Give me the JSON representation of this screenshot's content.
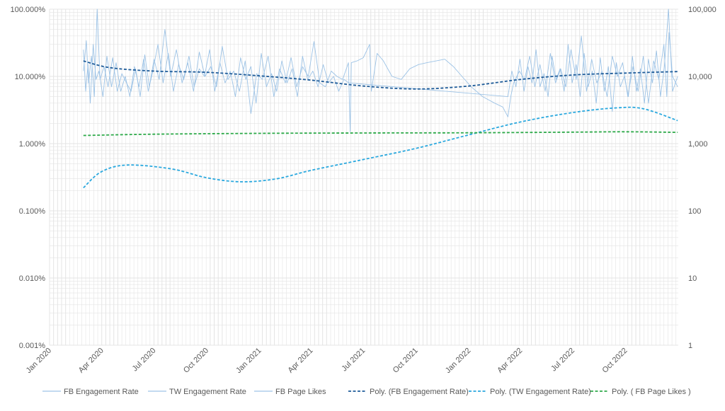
{
  "chart_data": {
    "type": "line",
    "title": "",
    "x_axis": {
      "type": "date",
      "ticks": [
        "Jan 2020",
        "Apr 2020",
        "Jul 2020",
        "Oct 2020",
        "Jan 2021",
        "Apr 2021",
        "Jul 2021",
        "Oct 2021",
        "Jan 2022",
        "Apr 2022",
        "Jul 2022",
        "Oct 2022"
      ],
      "tick_dates": [
        "2020-01-01",
        "2020-04-01",
        "2020-07-01",
        "2020-10-01",
        "2021-01-01",
        "2021-04-01",
        "2021-07-01",
        "2021-10-01",
        "2022-01-01",
        "2022-04-01",
        "2022-07-01",
        "2022-10-01"
      ],
      "range": [
        "2020-01-01",
        "2023-01-01"
      ],
      "label_rotation": "-45deg"
    },
    "y_left": {
      "scale": "log",
      "range": [
        1e-05,
        1
      ],
      "ticks": [
        "0.001%",
        "0.010%",
        "0.100%",
        "1.000%",
        "10.000%",
        "100.000%"
      ]
    },
    "y_right": {
      "scale": "log",
      "range": [
        1,
        100000
      ],
      "ticks": [
        "1",
        "10",
        "100",
        "1,000",
        "10,000",
        "100,000"
      ]
    },
    "grid": true,
    "legend_position": "bottom",
    "legend": [
      "FB Engagement Rate",
      "TW Engagement Rate",
      "FB Page Likes",
      "Poly. (FB Engagement Rate)",
      "Poly. (TW Engagement Rate)",
      "Poly. ( FB Page Likes )"
    ],
    "colors": {
      "raw": "#9DC3E6",
      "poly_fb": "#1F5C99",
      "poly_tw": "#2AA8DE",
      "poly_likes": "#2EAA4A",
      "grid": "#E4E4E4",
      "text": "#595959"
    },
    "series": [
      {
        "name": "Poly. (FB Engagement Rate)",
        "axis": "left",
        "style": "dashed",
        "x": [
          "2020-02-29",
          "2020-04-15",
          "2020-07-01",
          "2020-10-01",
          "2021-01-01",
          "2021-04-01",
          "2021-07-01",
          "2021-10-01",
          "2022-01-01",
          "2022-04-01",
          "2022-07-01",
          "2022-10-01",
          "2022-12-31"
        ],
        "values": [
          0.17,
          0.135,
          0.12,
          0.115,
          0.102,
          0.088,
          0.072,
          0.065,
          0.072,
          0.09,
          0.105,
          0.112,
          0.118
        ]
      },
      {
        "name": "Poly. (TW Engagement Rate)",
        "axis": "left",
        "style": "dashed",
        "x": [
          "2020-02-29",
          "2020-03-31",
          "2020-05-15",
          "2020-08-01",
          "2020-10-01",
          "2020-12-01",
          "2021-01-31",
          "2021-04-01",
          "2021-07-01",
          "2021-10-01",
          "2022-01-01",
          "2022-04-01",
          "2022-07-01",
          "2022-09-15",
          "2022-11-01",
          "2022-12-31"
        ],
        "values": [
          0.0022,
          0.0038,
          0.0048,
          0.0042,
          0.0031,
          0.0027,
          0.003,
          0.004,
          0.0058,
          0.0085,
          0.0135,
          0.021,
          0.029,
          0.034,
          0.033,
          0.022
        ]
      },
      {
        "name": "Poly. ( FB Page Likes )",
        "axis": "right",
        "style": "dashed",
        "x": [
          "2020-02-29",
          "2020-07-01",
          "2021-01-01",
          "2021-07-01",
          "2022-01-01",
          "2022-07-01",
          "2022-10-01",
          "2022-12-31"
        ],
        "values": [
          1320,
          1380,
          1420,
          1440,
          1450,
          1480,
          1500,
          1470
        ]
      },
      {
        "name": "FB Engagement Rate",
        "axis": "left",
        "style": "solid",
        "x": [
          "2020-02-29",
          "2020-03-05",
          "2020-03-09",
          "2020-03-14",
          "2020-03-19",
          "2020-03-24",
          "2020-03-29",
          "2020-04-05",
          "2020-04-12",
          "2020-04-20",
          "2020-04-28",
          "2020-05-06",
          "2020-05-14",
          "2020-05-22",
          "2020-05-30",
          "2020-06-07",
          "2020-06-15",
          "2020-06-23",
          "2020-07-01",
          "2020-07-10",
          "2020-07-20",
          "2020-07-30",
          "2020-08-09",
          "2020-08-19",
          "2020-08-29",
          "2020-09-08",
          "2020-09-18",
          "2020-09-28",
          "2020-10-08",
          "2020-10-18",
          "2020-10-28",
          "2020-11-07",
          "2020-11-17",
          "2020-11-27",
          "2020-12-07",
          "2020-12-17",
          "2020-12-27",
          "2021-01-06",
          "2021-01-16",
          "2021-01-26",
          "2021-02-05",
          "2021-02-15",
          "2021-02-25",
          "2021-03-07",
          "2021-03-17",
          "2021-03-27",
          "2021-04-06",
          "2021-04-16",
          "2021-04-26",
          "2021-05-06",
          "2021-05-16",
          "2021-05-26",
          "2021-06-05",
          "2021-06-08",
          "2021-06-10",
          "2021-06-20",
          "2021-07-01",
          "2021-07-12",
          "2021-07-15",
          "2021-07-25",
          "2021-08-05",
          "2021-08-20",
          "2021-09-05",
          "2021-09-20",
          "2021-10-05",
          "2021-10-20",
          "2021-11-05",
          "2021-11-20",
          "2021-12-05",
          "2021-12-20",
          "2022-01-05",
          "2022-01-25",
          "2022-02-15",
          "2022-03-01",
          "2022-03-10",
          "2022-03-15",
          "2022-03-20",
          "2022-03-30",
          "2022-04-08",
          "2022-04-17",
          "2022-04-26",
          "2022-05-05",
          "2022-05-14",
          "2022-05-23",
          "2022-06-01",
          "2022-06-10",
          "2022-06-19",
          "2022-06-28",
          "2022-07-07",
          "2022-07-16",
          "2022-07-25",
          "2022-08-03",
          "2022-08-12",
          "2022-08-21",
          "2022-08-30",
          "2022-09-08",
          "2022-09-17",
          "2022-09-26",
          "2022-10-05",
          "2022-10-14",
          "2022-10-23",
          "2022-11-01",
          "2022-11-10",
          "2022-11-19",
          "2022-11-28",
          "2022-12-07",
          "2022-12-12",
          "2022-12-16",
          "2022-12-22",
          "2022-12-31"
        ],
        "values": [
          0.12,
          0.34,
          0.08,
          0.2,
          0.05,
          1.0,
          0.09,
          0.14,
          0.07,
          0.19,
          0.06,
          0.11,
          0.08,
          0.06,
          0.13,
          0.05,
          0.21,
          0.07,
          0.18,
          0.09,
          0.5,
          0.1,
          0.25,
          0.08,
          0.16,
          0.06,
          0.23,
          0.1,
          0.14,
          0.07,
          0.28,
          0.09,
          0.12,
          0.06,
          0.17,
          0.028,
          0.11,
          0.09,
          0.2,
          0.05,
          0.13,
          0.08,
          0.19,
          0.07,
          0.14,
          0.1,
          0.33,
          0.08,
          0.07,
          0.12,
          0.1,
          0.09,
          0.16,
          0.015,
          0.16,
          0.17,
          0.19,
          0.3,
          0.06,
          0.22,
          0.17,
          0.1,
          0.09,
          0.13,
          0.15,
          0.16,
          0.17,
          0.18,
          0.14,
          0.1,
          0.07,
          0.05,
          0.04,
          0.035,
          0.025,
          0.05,
          0.08,
          0.12,
          0.09,
          0.2,
          0.07,
          0.15,
          0.06,
          0.22,
          0.08,
          0.13,
          0.07,
          0.25,
          0.09,
          0.4,
          0.06,
          0.18,
          0.08,
          0.12,
          0.05,
          0.2,
          0.1,
          0.16,
          0.05,
          0.14,
          0.06,
          0.2,
          0.04,
          0.17,
          0.09,
          0.3,
          0.05,
          0.45,
          0.1,
          0.07
        ]
      },
      {
        "name": "TW Engagement Rate",
        "axis": "left",
        "style": "solid",
        "x": [
          "2020-02-29",
          "2020-03-04",
          "2020-03-08",
          "2020-03-12",
          "2020-03-17",
          "2020-03-22",
          "2020-03-27",
          "2020-04-03",
          "2020-04-10",
          "2020-04-18",
          "2020-04-26",
          "2020-05-04",
          "2020-05-12",
          "2020-05-20",
          "2020-05-28",
          "2020-06-05",
          "2020-06-13",
          "2020-06-21",
          "2020-06-29",
          "2020-07-08",
          "2020-07-17",
          "2020-07-26",
          "2020-08-04",
          "2020-08-13",
          "2020-08-22",
          "2020-08-31",
          "2020-09-09",
          "2020-09-18",
          "2020-09-27",
          "2020-10-06",
          "2020-10-15",
          "2020-10-24",
          "2020-11-02",
          "2020-11-11",
          "2020-11-20",
          "2020-11-29",
          "2020-12-08",
          "2020-12-17",
          "2020-12-26",
          "2021-01-04",
          "2021-01-13",
          "2021-01-22",
          "2021-01-31",
          "2021-02-09",
          "2021-02-18",
          "2021-02-27",
          "2021-03-08",
          "2021-03-17",
          "2021-03-26",
          "2021-04-04",
          "2021-04-13",
          "2021-04-22",
          "2021-05-01",
          "2021-05-10",
          "2021-05-19",
          "2021-05-28",
          "2021-06-06",
          "2022-03-10",
          "2022-03-17",
          "2022-03-24",
          "2022-03-31",
          "2022-04-07",
          "2022-04-14",
          "2022-04-21",
          "2022-04-28",
          "2022-05-05",
          "2022-05-12",
          "2022-05-19",
          "2022-05-26",
          "2022-06-02",
          "2022-06-09",
          "2022-06-16",
          "2022-06-23",
          "2022-06-30",
          "2022-07-07",
          "2022-07-14",
          "2022-07-21",
          "2022-07-28",
          "2022-08-04",
          "2022-08-11",
          "2022-08-18",
          "2022-08-25",
          "2022-09-01",
          "2022-09-08",
          "2022-09-15",
          "2022-09-22",
          "2022-09-29",
          "2022-10-06",
          "2022-10-13",
          "2022-10-20",
          "2022-10-27",
          "2022-11-03",
          "2022-11-10",
          "2022-11-17",
          "2022-11-24",
          "2022-12-01",
          "2022-12-08",
          "2022-12-15",
          "2022-12-22",
          "2022-12-31"
        ],
        "values": [
          0.25,
          0.06,
          0.15,
          0.04,
          0.3,
          0.09,
          0.12,
          0.05,
          0.2,
          0.07,
          0.16,
          0.06,
          0.1,
          0.05,
          0.14,
          0.07,
          0.18,
          0.06,
          0.12,
          0.3,
          0.08,
          0.22,
          0.06,
          0.15,
          0.09,
          0.2,
          0.07,
          0.13,
          0.1,
          0.25,
          0.06,
          0.16,
          0.08,
          0.12,
          0.05,
          0.19,
          0.09,
          0.14,
          0.04,
          0.22,
          0.07,
          0.11,
          0.06,
          0.17,
          0.08,
          0.13,
          0.05,
          0.2,
          0.09,
          0.12,
          0.07,
          0.15,
          0.08,
          0.1,
          0.06,
          0.09,
          0.08,
          0.05,
          0.12,
          0.07,
          0.18,
          0.06,
          0.14,
          0.08,
          0.25,
          0.07,
          0.11,
          0.05,
          0.2,
          0.09,
          0.13,
          0.06,
          0.3,
          0.08,
          0.15,
          0.05,
          0.22,
          0.07,
          0.12,
          0.04,
          0.19,
          0.06,
          0.14,
          0.03,
          0.16,
          0.07,
          0.1,
          0.05,
          0.2,
          0.06,
          0.13,
          0.04,
          0.18,
          0.08,
          0.24,
          0.05,
          0.15,
          1.0,
          0.06,
          0.1
        ]
      },
      {
        "name": "FB Page Likes",
        "axis": "right",
        "style": "solid",
        "x": [],
        "values": []
      }
    ]
  }
}
